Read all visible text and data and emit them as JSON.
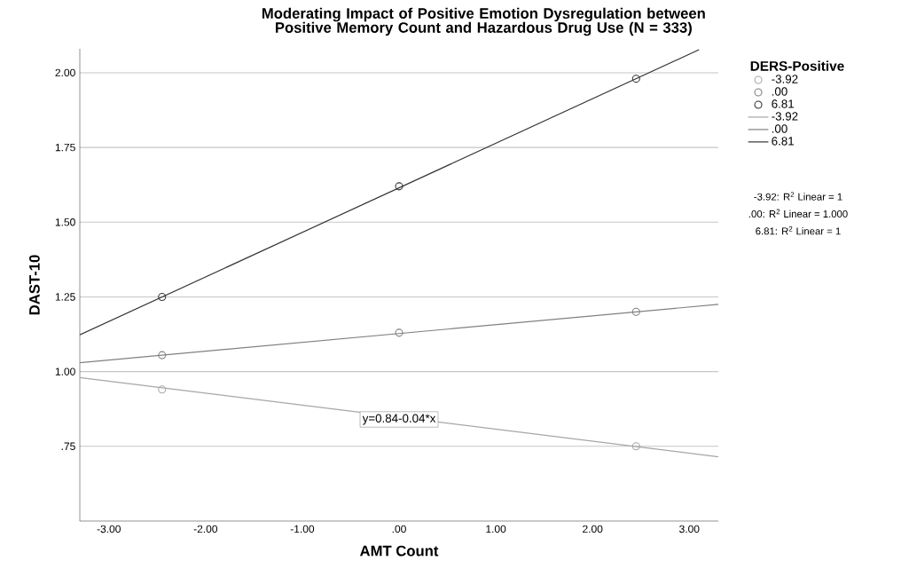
{
  "chart_data": {
    "type": "scatter",
    "title": "Moderating Impact of Positive Emotion Dysregulation between Positive Memory Count and Hazardous Drug Use (N = 333)",
    "xlabel": "AMT Count",
    "ylabel": "DAST-10",
    "legend_title": "DERS-Positive",
    "x": [
      -2.45,
      0,
      2.45
    ],
    "series": [
      {
        "name": "-3.92",
        "color": "#a6a6a6",
        "values": [
          0.94,
          null,
          0.75
        ]
      },
      {
        "name": ".00",
        "color": "#808080",
        "values": [
          1.055,
          1.13,
          1.2
        ]
      },
      {
        "name": "6.81",
        "color": "#333333",
        "values": [
          1.25,
          1.62,
          1.98
        ]
      },
      {
        "name": "-3.92",
        "type": "line",
        "marker": "none",
        "color": "#a6a6a6",
        "x": [
          -3.3,
          3.3
        ],
        "values": [
          0.98,
          0.715
        ]
      },
      {
        "name": ".00",
        "type": "line",
        "marker": "none",
        "color": "#808080",
        "x": [
          -3.3,
          3.3
        ],
        "values": [
          1.03,
          1.225
        ]
      },
      {
        "name": "6.81",
        "type": "line",
        "marker": "none",
        "color": "#333333",
        "x": [
          -3.3,
          3.1
        ],
        "values": [
          1.123,
          2.077
        ]
      }
    ],
    "annotations": [
      "-3.92: R$^{2}$ Linear = 1",
      ".00: R$^{2}$ Linear = 1.000",
      "6.81: R$^{2}$ Linear = 1",
      {
        "text": "y=0.84-0.04*x",
        "x": 0,
        "y": 0.84
      }
    ],
    "xlim": [
      -3.3,
      3.3
    ],
    "ylim": [
      0.5,
      2.08
    ],
    "xticks": [
      {
        "value": -3,
        "label": "-3.00"
      },
      {
        "value": -2,
        "label": "-2.00"
      },
      {
        "value": -1,
        "label": "-1.00"
      },
      {
        "value": 0,
        "label": ".00"
      },
      {
        "value": 1,
        "label": "1.00"
      },
      {
        "value": 2,
        "label": "2.00"
      },
      {
        "value": 3,
        "label": "3.00"
      }
    ],
    "yticks": [
      {
        "value": 0.75,
        "label": ".75"
      },
      {
        "value": 1,
        "label": "1.00"
      },
      {
        "value": 1.25,
        "label": "1.25"
      },
      {
        "value": 1.5,
        "label": "1.50"
      },
      {
        "value": 1.75,
        "label": "1.75"
      },
      {
        "value": 2,
        "label": "2.00"
      }
    ],
    "grid": "y",
    "legend": "right",
    "marker": "circle"
  }
}
